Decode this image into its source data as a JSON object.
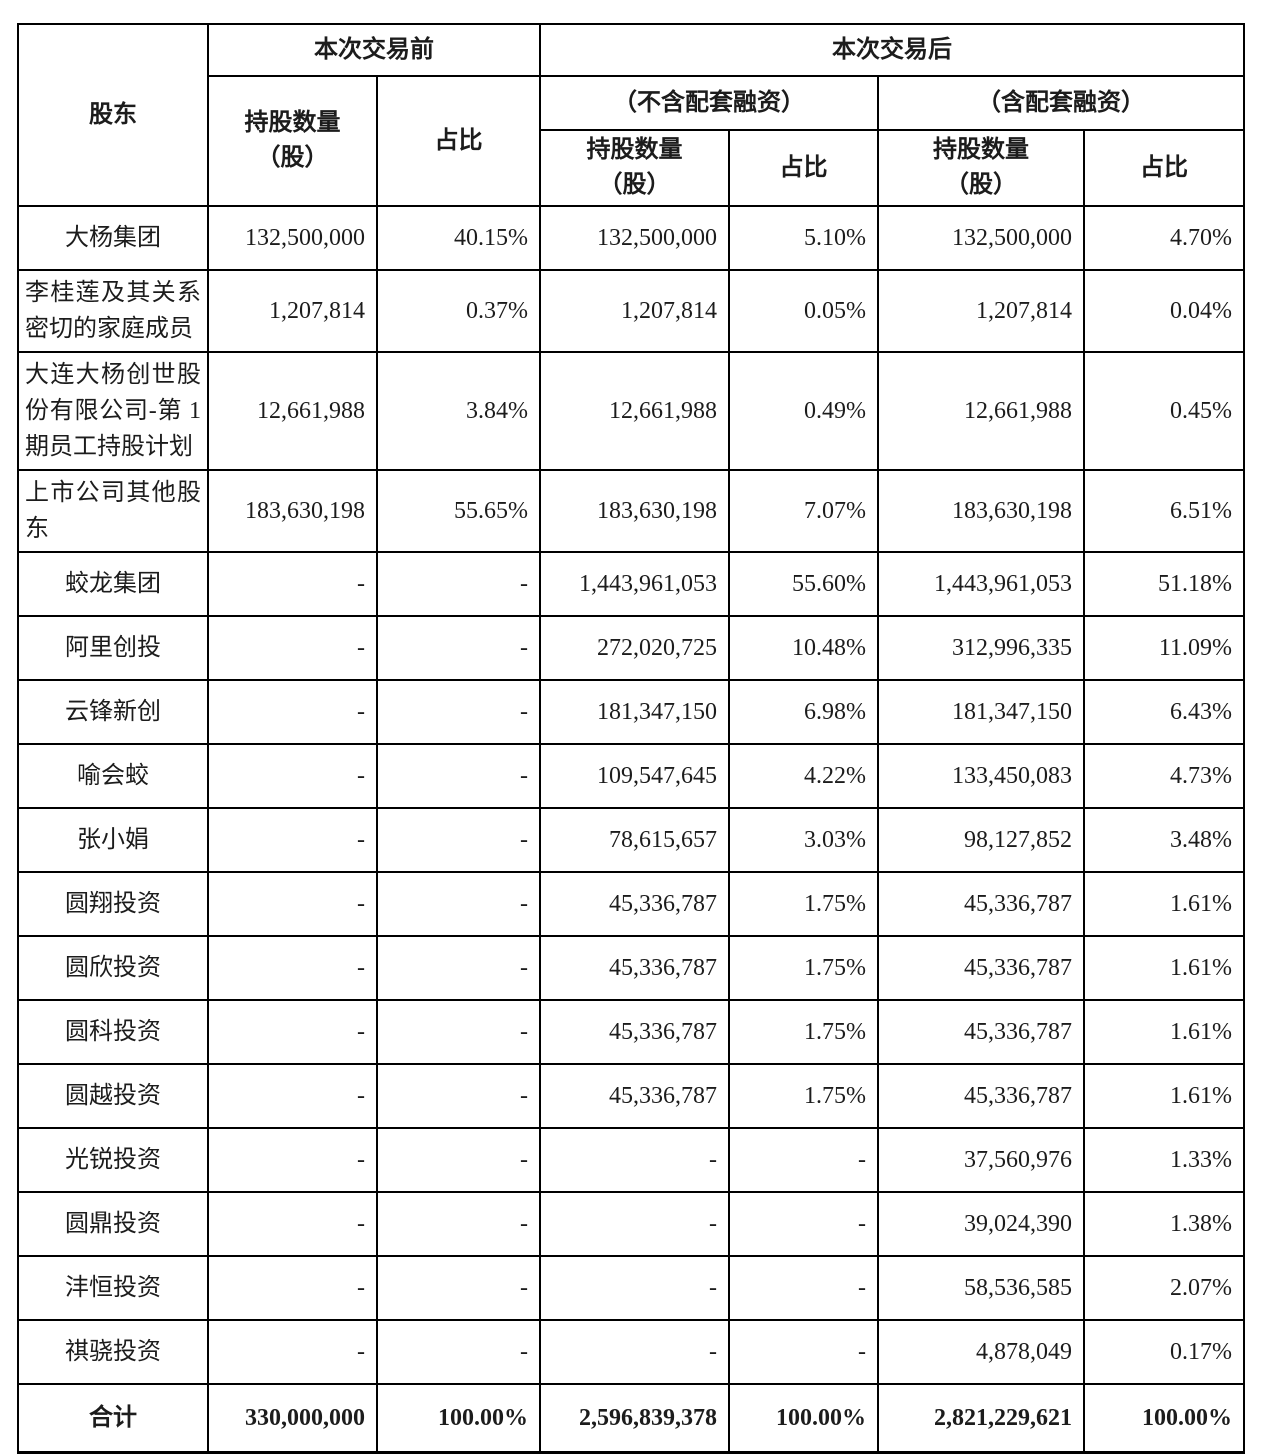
{
  "page": {
    "background": "#ffffff",
    "text_color": "#1c1c1c",
    "border_color": "#000000"
  },
  "table": {
    "header": {
      "shareholder": "股东",
      "before": "本次交易前",
      "after": "本次交易后",
      "excl_financing": "（不含配套融资）",
      "incl_financing": "（含配套融资）",
      "shares_line1": "持股数量",
      "shares_line2": "（股）",
      "ratio": "占比"
    },
    "rows": [
      {
        "cells": [
          "大杨集团",
          "132,500,000",
          "40.15%",
          "132,500,000",
          "5.10%",
          "132,500,000",
          "4.70%"
        ]
      },
      {
        "cells": [
          "李桂莲及其关系密切的家庭成员",
          "1,207,814",
          "0.37%",
          "1,207,814",
          "0.05%",
          "1,207,814",
          "0.04%"
        ]
      },
      {
        "cells": [
          "大连大杨创世股份有限公司-第 1 期员工持股计划",
          "12,661,988",
          "3.84%",
          "12,661,988",
          "0.49%",
          "12,661,988",
          "0.45%"
        ]
      },
      {
        "cells": [
          "上市公司其他股东",
          "183,630,198",
          "55.65%",
          "183,630,198",
          "7.07%",
          "183,630,198",
          "6.51%"
        ]
      },
      {
        "cells": [
          "蛟龙集团",
          "-",
          "-",
          "1,443,961,053",
          "55.60%",
          "1,443,961,053",
          "51.18%"
        ]
      },
      {
        "cells": [
          "阿里创投",
          "-",
          "-",
          "272,020,725",
          "10.48%",
          "312,996,335",
          "11.09%"
        ]
      },
      {
        "cells": [
          "云锋新创",
          "-",
          "-",
          "181,347,150",
          "6.98%",
          "181,347,150",
          "6.43%"
        ]
      },
      {
        "cells": [
          "喻会蛟",
          "-",
          "-",
          "109,547,645",
          "4.22%",
          "133,450,083",
          "4.73%"
        ]
      },
      {
        "cells": [
          "张小娟",
          "-",
          "-",
          "78,615,657",
          "3.03%",
          "98,127,852",
          "3.48%"
        ]
      },
      {
        "cells": [
          "圆翔投资",
          "-",
          "-",
          "45,336,787",
          "1.75%",
          "45,336,787",
          "1.61%"
        ]
      },
      {
        "cells": [
          "圆欣投资",
          "-",
          "-",
          "45,336,787",
          "1.75%",
          "45,336,787",
          "1.61%"
        ]
      },
      {
        "cells": [
          "圆科投资",
          "-",
          "-",
          "45,336,787",
          "1.75%",
          "45,336,787",
          "1.61%"
        ]
      },
      {
        "cells": [
          "圆越投资",
          "-",
          "-",
          "45,336,787",
          "1.75%",
          "45,336,787",
          "1.61%"
        ]
      },
      {
        "cells": [
          "光锐投资",
          "-",
          "-",
          "-",
          "-",
          "37,560,976",
          "1.33%"
        ]
      },
      {
        "cells": [
          "圆鼎投资",
          "-",
          "-",
          "-",
          "-",
          "39,024,390",
          "1.38%"
        ]
      },
      {
        "cells": [
          "沣恒投资",
          "-",
          "-",
          "-",
          "-",
          "58,536,585",
          "2.07%"
        ]
      },
      {
        "cells": [
          "祺骁投资",
          "-",
          "-",
          "-",
          "-",
          "4,878,049",
          "0.17%"
        ]
      },
      {
        "cells": [
          "合计",
          "330,000,000",
          "100.00%",
          "2,596,839,378",
          "100.00%",
          "2,821,229,621",
          "100.00%"
        ],
        "emphasis": true
      }
    ]
  }
}
